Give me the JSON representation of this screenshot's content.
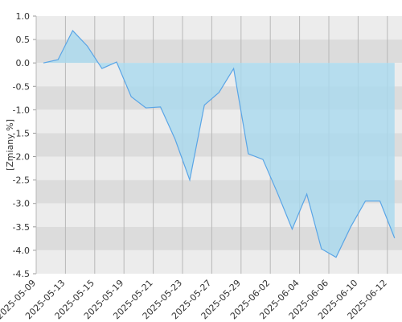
{
  "chart_data": {
    "type": "area",
    "y_label": "[Zmiany %]",
    "values": [
      0.0,
      0.07,
      0.69,
      0.36,
      -0.12,
      0.02,
      -0.72,
      -0.96,
      -0.94,
      -1.63,
      -2.5,
      -0.9,
      -0.63,
      -0.12,
      -1.94,
      -2.06,
      -2.78,
      -3.55,
      -2.8,
      -3.97,
      -4.15,
      -3.5,
      -2.95,
      -2.95,
      -3.74
    ],
    "xticks": [
      "2025-05-09",
      "2025-05-13",
      "2025-05-15",
      "2025-05-19",
      "2025-05-21",
      "2025-05-23",
      "2025-05-27",
      "2025-05-29",
      "2025-06-02",
      "2025-06-04",
      "2025-06-06",
      "2025-06-10",
      "2025-06-12"
    ],
    "ylim": [
      -4.5,
      1.0
    ],
    "yticks": [
      {
        "value": 1.0,
        "label": "1.0"
      },
      0.5,
      {
        "value": 0.0,
        "label": "0.0"
      },
      -0.5,
      {
        "value": -1.0,
        "label": "-1.0"
      },
      -1.5,
      {
        "value": -2.0,
        "label": "-2.0"
      },
      -2.5,
      {
        "value": -3.0,
        "label": "-3.0"
      },
      -3.5,
      {
        "value": -4.0,
        "label": "-4.0"
      },
      -4.5
    ],
    "color": "#5aa5e6",
    "fill_color": "#a9d9ef",
    "grid": true
  }
}
